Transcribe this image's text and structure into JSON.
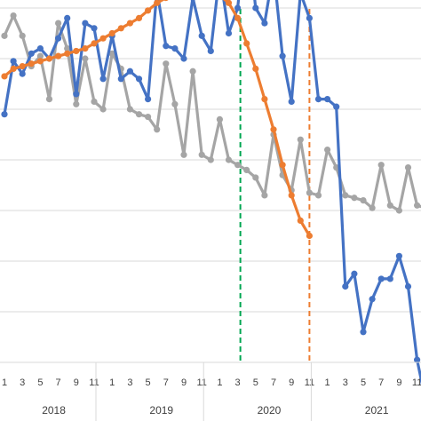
{
  "chart_data": {
    "type": "line",
    "grid": true,
    "legend": "none",
    "ylim": [
      0,
      8
    ],
    "month_ticks": [
      "1",
      "3",
      "5",
      "7",
      "9",
      "11"
    ],
    "years": [
      {
        "label": "2018",
        "start": 0
      },
      {
        "label": "2019",
        "start": 12
      },
      {
        "label": "2020",
        "start": 24
      },
      {
        "label": "2021",
        "start": 36
      }
    ],
    "x_visible": [
      -0.3,
      46.6
    ],
    "series": [
      {
        "key": "gray",
        "color": "#a5a5a5",
        "x_start": 0,
        "values": [
          6.45,
          6.85,
          6.45,
          5.85,
          6.05,
          5.2,
          6.7,
          6.2,
          5.1,
          6.0,
          5.15,
          5.0,
          6.1,
          5.8,
          5.0,
          4.9,
          4.85,
          4.6,
          5.9,
          5.1,
          4.1,
          5.75,
          4.1,
          4.0,
          4.8,
          4.0,
          3.9,
          3.8,
          3.65,
          3.3,
          4.5,
          3.7,
          3.4,
          4.4,
          3.35,
          3.3,
          4.2,
          3.85,
          3.3,
          3.25,
          3.2,
          3.05,
          3.9,
          3.1,
          3.0,
          3.85,
          3.1,
          3.05
        ]
      },
      {
        "key": "blue",
        "color": "#4472c4",
        "x_start": 0,
        "values": [
          4.9,
          5.95,
          5.7,
          6.1,
          6.2,
          6.0,
          6.4,
          6.8,
          5.3,
          6.7,
          6.6,
          5.6,
          6.45,
          5.6,
          5.75,
          5.6,
          5.2,
          7.35,
          6.25,
          6.2,
          6.0,
          7.2,
          6.45,
          6.15,
          7.7,
          6.5,
          7.0,
          8.7,
          7.0,
          6.7,
          7.75,
          6.05,
          5.15,
          7.3,
          6.8,
          5.2,
          5.2,
          5.05,
          1.5,
          1.75,
          0.6,
          1.25,
          1.65,
          1.65,
          2.1,
          1.5,
          0.05,
          -0.8
        ]
      },
      {
        "key": "orange",
        "color": "#ed7d31",
        "x_start": 0,
        "values": [
          5.65,
          5.8,
          5.85,
          5.9,
          5.95,
          6.0,
          6.05,
          6.1,
          6.15,
          6.2,
          6.3,
          6.4,
          6.5,
          6.6,
          6.7,
          6.8,
          6.95,
          7.1,
          7.2,
          7.3,
          7.35,
          7.4,
          7.4,
          7.35,
          7.25,
          7.1,
          6.8,
          6.3,
          5.8,
          5.2,
          4.6,
          3.9,
          3.3,
          2.8,
          2.5
        ]
      }
    ],
    "vlines": [
      {
        "x": 26.3,
        "color": "#00a651"
      },
      {
        "x": 34.0,
        "color": "#ed7d31"
      }
    ]
  }
}
